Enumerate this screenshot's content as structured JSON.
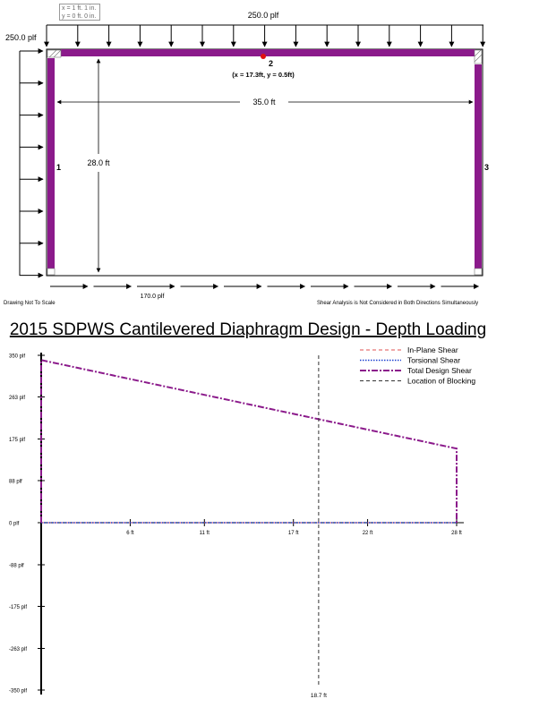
{
  "drawing": {
    "tooltip_line1": "x = 1 ft. 1 in.",
    "tooltip_line2": "y = 0 ft. 0 in.",
    "top_load_label": "250.0 plf",
    "left_load_label": "250.0 plf",
    "bottom_load_label": "170.0 plf",
    "width_label": "35.0 ft",
    "height_label": "28.0 ft",
    "wall_labels": [
      "1",
      "2",
      "3"
    ],
    "point_label": "(x = 17.3ft, y = 0.5ft)",
    "note_left": "Drawing Not To Scale",
    "note_right": "Shear Analysis is Not Considered in Both Directions Simultaneously",
    "colors": {
      "wall": "#8b1a8b",
      "point": "#e01010"
    }
  },
  "chart_title": "2015 SDPWS Cantilevered Diaphragm Design - Depth Loading",
  "chart_data": {
    "type": "line",
    "title": "2015 SDPWS Cantilevered Diaphragm Design - Depth Loading",
    "xlabel": "",
    "ylabel": "",
    "xlim": [
      0,
      35
    ],
    "ylim": [
      -350,
      350
    ],
    "x_ticks": [
      6,
      11,
      17,
      22,
      28
    ],
    "x_tick_labels": [
      "6 ft",
      "11 ft",
      "17 ft",
      "22 ft",
      "28 ft"
    ],
    "y_ticks": [
      350,
      263,
      175,
      88,
      0,
      -88,
      -175,
      -263,
      -350
    ],
    "y_tick_labels": [
      "350 plf",
      "263 plf",
      "175 plf",
      "88 plf",
      "0 plf",
      "-88 plf",
      "-175 plf",
      "-263 plf",
      "-350 plf"
    ],
    "legend_position": "top-right",
    "series": [
      {
        "name": "In-Plane Shear",
        "color": "#e05050",
        "dash": "4,3",
        "width": 1,
        "points": [
          [
            0,
            0
          ],
          [
            28,
            0
          ]
        ]
      },
      {
        "name": "Torsional Shear",
        "color": "#1a3fd0",
        "dash": "1.5,1.5",
        "width": 1.5,
        "points": [
          [
            0,
            0
          ],
          [
            28,
            0
          ]
        ]
      },
      {
        "name": "Total Design Shear",
        "color": "#8b1a8b",
        "dash": "7,2,2,2",
        "width": 2,
        "points": [
          [
            0,
            0
          ],
          [
            0,
            340
          ],
          [
            28,
            155
          ],
          [
            28,
            0
          ]
        ]
      }
    ],
    "blocking": {
      "name": "Location of Blocking",
      "x": 18.7,
      "label": "18.7 ft",
      "color": "#333333"
    }
  }
}
